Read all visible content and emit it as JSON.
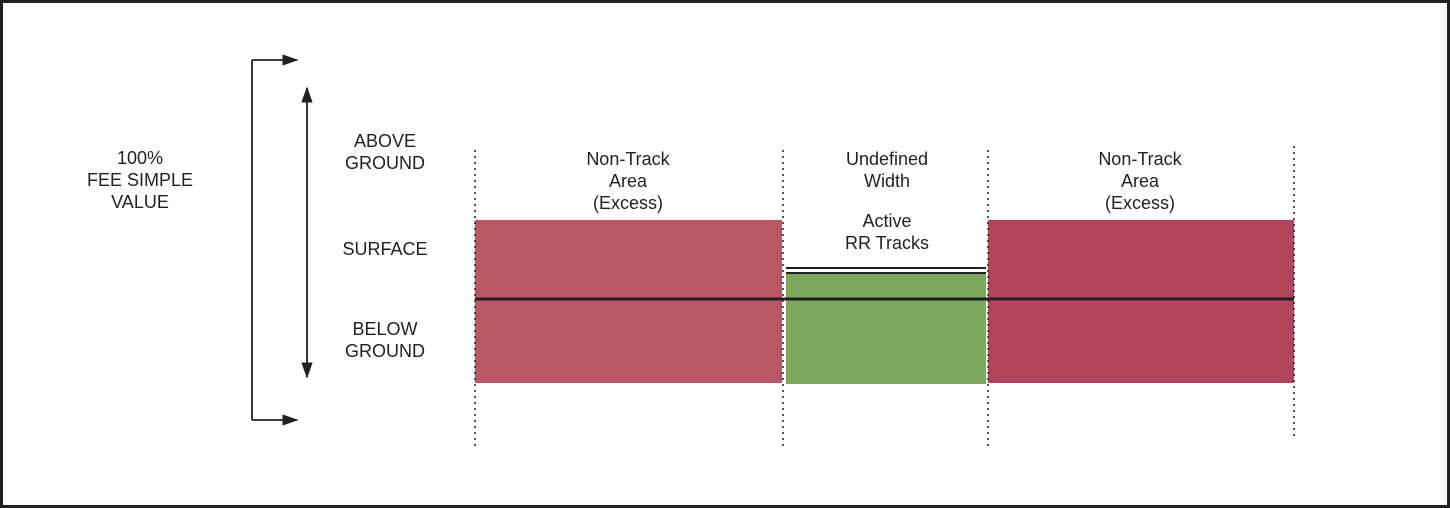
{
  "fee_simple_label": "100%\nFEE SIMPLE\nVALUE",
  "levels": {
    "above": "ABOVE\nGROUND",
    "surface": "SURFACE",
    "below": "BELOW\nGROUND"
  },
  "zones": {
    "left": "Non-Track\nArea\n(Excess)",
    "center": "Undefined\nWidth",
    "right": "Non-Track\nArea\n(Excess)",
    "tracks": "Active\nRR Tracks"
  },
  "colors": {
    "left_excess": "#b85766",
    "right_excess": "#b2445c",
    "rail_corridor": "#7ba85c",
    "line": "#231f20"
  }
}
